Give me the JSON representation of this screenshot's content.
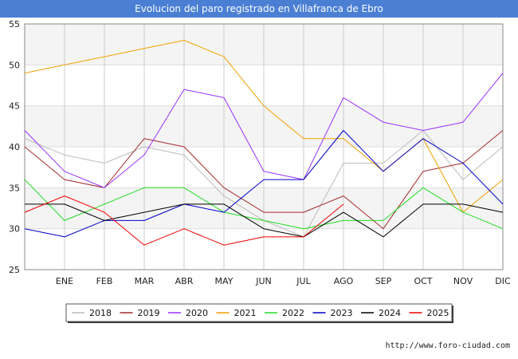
{
  "header": {
    "title": "Evolucion del paro registrado en Villafranca de Ebro"
  },
  "footer": {
    "credit": "http://www.foro-ciudad.com"
  },
  "chart_data": {
    "type": "line",
    "title": "Evolucion del paro registrado en Villafranca de Ebro",
    "xlabel": "",
    "ylabel": "",
    "ylim": [
      25,
      55
    ],
    "yticks": [
      25,
      30,
      35,
      40,
      45,
      50,
      55
    ],
    "categories": [
      "",
      "ENE",
      "FEB",
      "MAR",
      "ABR",
      "MAY",
      "JUN",
      "JUL",
      "AGO",
      "SEP",
      "OCT",
      "NOV",
      "DIC"
    ],
    "grid": true,
    "legend_position": "bottom",
    "series": [
      {
        "name": "2018",
        "color": "#bbbbbb",
        "values": [
          41,
          39,
          38,
          40,
          39,
          34,
          31,
          29,
          38,
          38,
          42,
          36,
          40
        ]
      },
      {
        "name": "2019",
        "color": "#a52a2a",
        "values": [
          40,
          36,
          35,
          41,
          40,
          35,
          32,
          32,
          34,
          30,
          37,
          38,
          42
        ]
      },
      {
        "name": "2020",
        "color": "#9b30ff",
        "values": [
          42,
          37,
          35,
          39,
          47,
          46,
          37,
          36,
          46,
          43,
          42,
          43,
          49
        ]
      },
      {
        "name": "2021",
        "color": "#f0a000",
        "values": [
          49,
          50,
          51,
          52,
          53,
          51,
          45,
          41,
          41,
          37,
          41,
          32,
          36
        ]
      },
      {
        "name": "2022",
        "color": "#22dd22",
        "values": [
          36,
          31,
          33,
          35,
          35,
          32,
          31,
          30,
          31,
          31,
          35,
          32,
          30
        ]
      },
      {
        "name": "2023",
        "color": "#0000cc",
        "values": [
          30,
          29,
          31,
          31,
          33,
          32,
          36,
          36,
          42,
          37,
          41,
          38,
          33
        ]
      },
      {
        "name": "2024",
        "color": "#000000",
        "values": [
          33,
          33,
          31,
          32,
          33,
          33,
          30,
          29,
          32,
          29,
          33,
          33,
          32
        ]
      },
      {
        "name": "2025",
        "color": "#ee0000",
        "values": [
          32,
          34,
          32,
          28,
          30,
          28,
          29,
          29,
          33,
          null,
          null,
          null,
          null
        ]
      }
    ]
  }
}
